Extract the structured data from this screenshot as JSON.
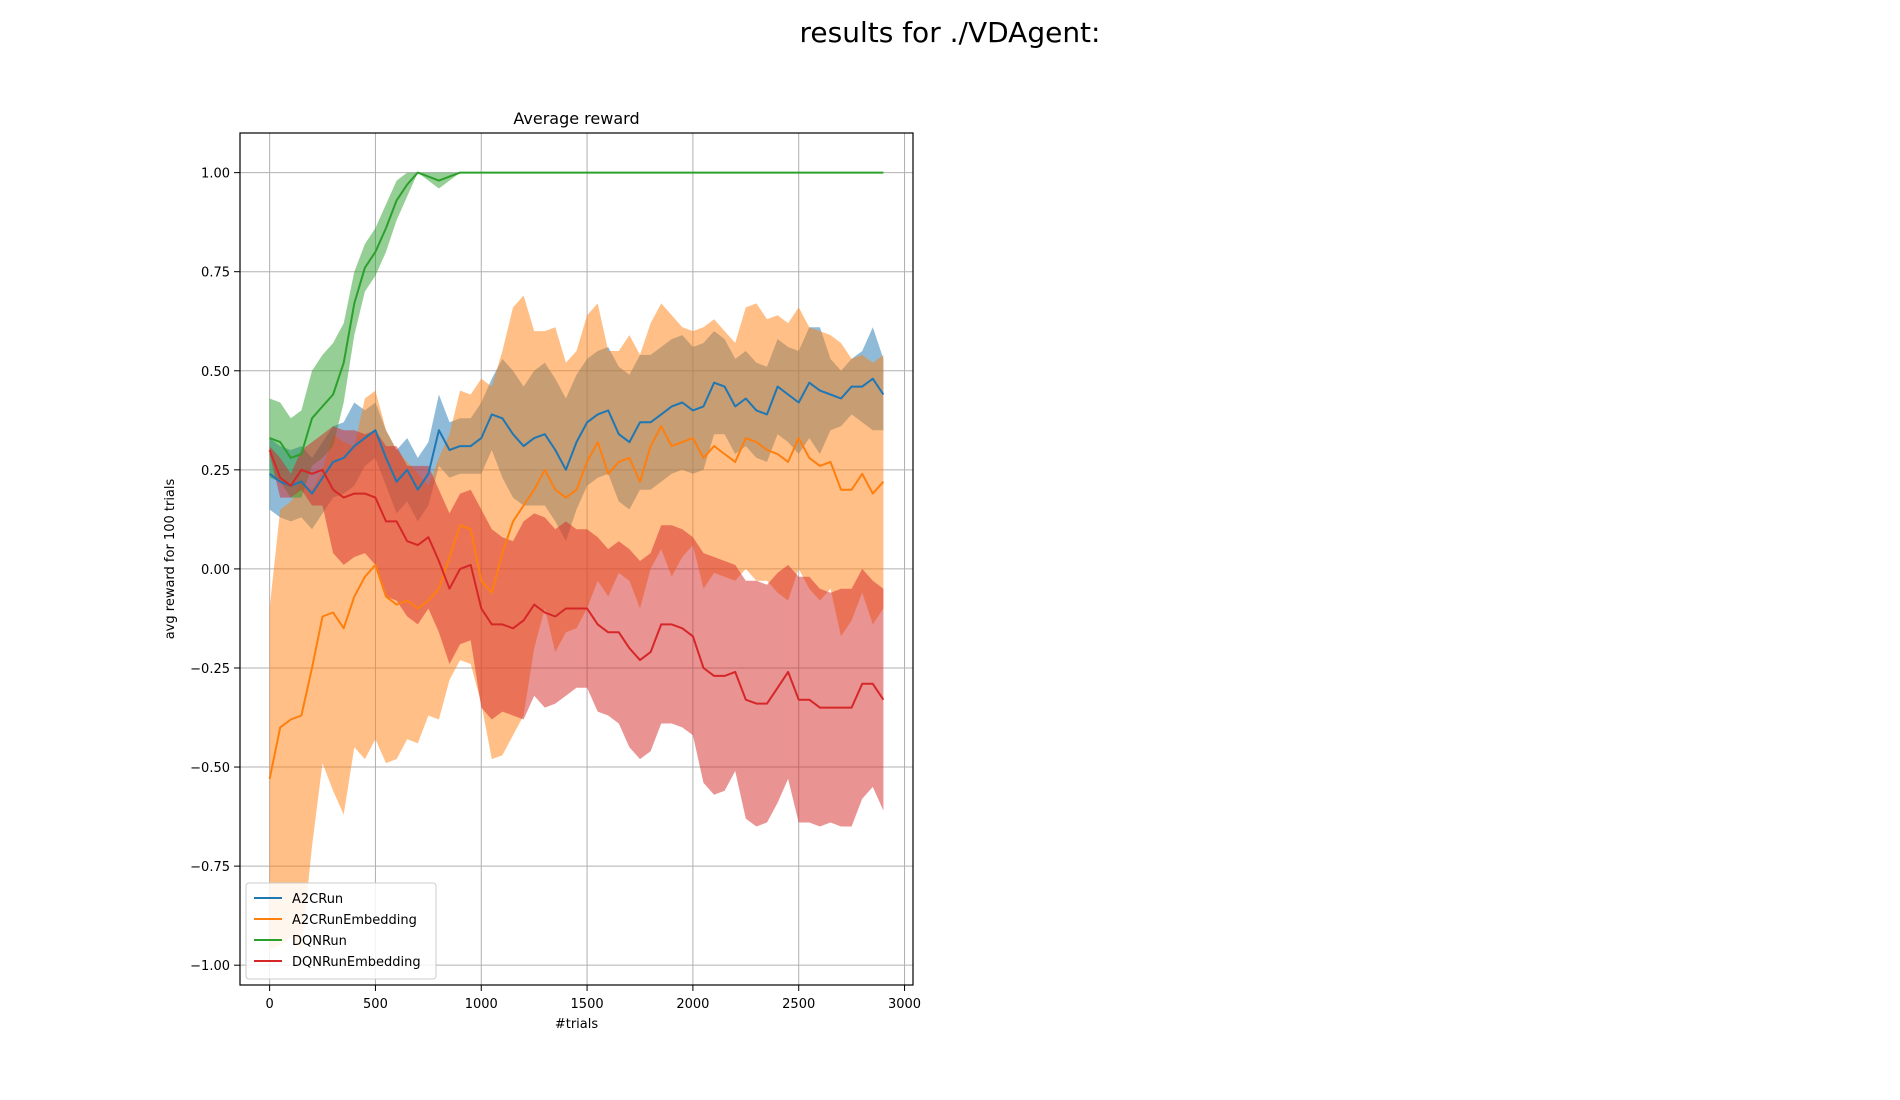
{
  "figure_title": "results for ./VDAgent:",
  "chart_data": {
    "type": "line",
    "title": "Average reward",
    "xlabel": "#trials",
    "ylabel": "avg reward for 100 trials",
    "xlim": [
      -140,
      3040
    ],
    "ylim": [
      -1.05,
      1.1
    ],
    "xticks": [
      0,
      500,
      1000,
      1500,
      2000,
      2500,
      3000
    ],
    "yticks": [
      -1.0,
      -0.75,
      -0.5,
      -0.25,
      0.0,
      0.25,
      0.5,
      0.75,
      1.0
    ],
    "ytick_labels": [
      "−1.00",
      "−0.75",
      "−0.50",
      "−0.25",
      "0.00",
      "0.25",
      "0.50",
      "0.75",
      "1.00"
    ],
    "grid": true,
    "legend_position": "lower-left",
    "x_start": 0,
    "x_step": 50,
    "series": [
      {
        "name": "A2CRun",
        "color": "#1f77b4",
        "band_opacity": 0.5,
        "mean": [
          0.24,
          0.22,
          0.21,
          0.22,
          0.19,
          0.23,
          0.27,
          0.28,
          0.31,
          0.33,
          0.35,
          0.28,
          0.22,
          0.25,
          0.2,
          0.24,
          0.35,
          0.3,
          0.31,
          0.31,
          0.33,
          0.39,
          0.38,
          0.34,
          0.31,
          0.33,
          0.34,
          0.3,
          0.25,
          0.32,
          0.37,
          0.39,
          0.4,
          0.34,
          0.32,
          0.37,
          0.37,
          0.39,
          0.41,
          0.42,
          0.4,
          0.41,
          0.47,
          0.46,
          0.41,
          0.43,
          0.4,
          0.39,
          0.46,
          0.44,
          0.42,
          0.47,
          0.45,
          0.44,
          0.43,
          0.46,
          0.46,
          0.48,
          0.44
        ],
        "upper": [
          0.33,
          0.31,
          0.3,
          0.31,
          0.28,
          0.32,
          0.36,
          0.37,
          0.42,
          0.4,
          0.42,
          0.35,
          0.3,
          0.33,
          0.28,
          0.32,
          0.44,
          0.37,
          0.38,
          0.38,
          0.42,
          0.48,
          0.53,
          0.5,
          0.46,
          0.5,
          0.52,
          0.48,
          0.43,
          0.49,
          0.53,
          0.55,
          0.56,
          0.51,
          0.49,
          0.54,
          0.54,
          0.56,
          0.58,
          0.59,
          0.56,
          0.57,
          0.6,
          0.58,
          0.53,
          0.55,
          0.52,
          0.51,
          0.58,
          0.56,
          0.55,
          0.61,
          0.61,
          0.53,
          0.5,
          0.53,
          0.55,
          0.61,
          0.53
        ],
        "lower": [
          0.15,
          0.13,
          0.12,
          0.13,
          0.1,
          0.14,
          0.18,
          0.19,
          0.21,
          0.26,
          0.28,
          0.21,
          0.14,
          0.17,
          0.12,
          0.16,
          0.26,
          0.23,
          0.24,
          0.24,
          0.24,
          0.3,
          0.23,
          0.18,
          0.16,
          0.16,
          0.16,
          0.12,
          0.07,
          0.15,
          0.21,
          0.23,
          0.24,
          0.17,
          0.15,
          0.2,
          0.2,
          0.22,
          0.24,
          0.25,
          0.24,
          0.25,
          0.34,
          0.34,
          0.29,
          0.31,
          0.28,
          0.27,
          0.34,
          0.32,
          0.29,
          0.33,
          0.29,
          0.35,
          0.36,
          0.39,
          0.37,
          0.35,
          0.35
        ]
      },
      {
        "name": "A2CRunEmbedding",
        "color": "#ff7f0e",
        "band_opacity": 0.5,
        "mean": [
          -0.53,
          -0.4,
          -0.38,
          -0.37,
          -0.25,
          -0.12,
          -0.11,
          -0.15,
          -0.07,
          -0.02,
          0.01,
          -0.07,
          -0.09,
          -0.08,
          -0.1,
          -0.08,
          -0.05,
          0.03,
          0.11,
          0.1,
          -0.03,
          -0.06,
          0.04,
          0.12,
          0.16,
          0.2,
          0.25,
          0.2,
          0.18,
          0.2,
          0.27,
          0.32,
          0.24,
          0.27,
          0.28,
          0.22,
          0.31,
          0.36,
          0.31,
          0.32,
          0.33,
          0.28,
          0.31,
          0.29,
          0.27,
          0.33,
          0.32,
          0.3,
          0.29,
          0.27,
          0.33,
          0.28,
          0.26,
          0.27,
          0.2,
          0.2,
          0.24,
          0.19,
          0.22
        ],
        "upper": [
          -0.1,
          0.15,
          0.17,
          0.22,
          0.2,
          0.25,
          0.34,
          0.32,
          0.31,
          0.43,
          0.45,
          0.35,
          0.3,
          0.27,
          0.24,
          0.21,
          0.28,
          0.34,
          0.45,
          0.44,
          0.48,
          0.46,
          0.55,
          0.66,
          0.69,
          0.6,
          0.6,
          0.61,
          0.52,
          0.55,
          0.64,
          0.67,
          0.55,
          0.55,
          0.59,
          0.54,
          0.62,
          0.67,
          0.64,
          0.61,
          0.6,
          0.61,
          0.63,
          0.6,
          0.57,
          0.66,
          0.67,
          0.63,
          0.64,
          0.62,
          0.66,
          0.61,
          0.6,
          0.59,
          0.57,
          0.53,
          0.54,
          0.52,
          0.54
        ],
        "lower": [
          -0.96,
          -0.95,
          -0.93,
          -0.96,
          -0.7,
          -0.49,
          -0.56,
          -0.62,
          -0.45,
          -0.48,
          -0.43,
          -0.49,
          -0.48,
          -0.43,
          -0.44,
          -0.37,
          -0.38,
          -0.28,
          -0.23,
          -0.24,
          -0.34,
          -0.48,
          -0.47,
          -0.42,
          -0.37,
          -0.2,
          -0.1,
          -0.21,
          -0.16,
          -0.15,
          -0.1,
          -0.03,
          -0.07,
          -0.01,
          -0.03,
          -0.1,
          0.0,
          0.05,
          -0.02,
          0.03,
          0.06,
          -0.05,
          -0.01,
          -0.02,
          -0.03,
          0.0,
          -0.03,
          -0.03,
          -0.06,
          -0.08,
          0.0,
          -0.05,
          -0.08,
          -0.05,
          -0.17,
          -0.13,
          -0.06,
          -0.14,
          -0.1
        ]
      },
      {
        "name": "DQNRun",
        "color": "#2ca02c",
        "band_opacity": 0.5,
        "mean": [
          0.33,
          0.32,
          0.28,
          0.29,
          0.38,
          0.41,
          0.44,
          0.52,
          0.67,
          0.76,
          0.8,
          0.86,
          0.93,
          0.97,
          1.0,
          0.99,
          0.98,
          0.99,
          1.0,
          1.0,
          1.0,
          1.0,
          1.0,
          1.0,
          1.0,
          1.0,
          1.0,
          1.0,
          1.0,
          1.0,
          1.0,
          1.0,
          1.0,
          1.0,
          1.0,
          1.0,
          1.0,
          1.0,
          1.0,
          1.0,
          1.0,
          1.0,
          1.0,
          1.0,
          1.0,
          1.0,
          1.0,
          1.0,
          1.0,
          1.0,
          1.0,
          1.0,
          1.0,
          1.0,
          1.0,
          1.0,
          1.0,
          1.0,
          1.0
        ],
        "upper": [
          0.43,
          0.42,
          0.38,
          0.4,
          0.5,
          0.54,
          0.57,
          0.62,
          0.75,
          0.82,
          0.86,
          0.92,
          0.98,
          1.0,
          1.0,
          1.0,
          1.0,
          1.0,
          1.0,
          1.0,
          1.0,
          1.0,
          1.0,
          1.0,
          1.0,
          1.0,
          1.0,
          1.0,
          1.0,
          1.0,
          1.0,
          1.0,
          1.0,
          1.0,
          1.0,
          1.0,
          1.0,
          1.0,
          1.0,
          1.0,
          1.0,
          1.0,
          1.0,
          1.0,
          1.0,
          1.0,
          1.0,
          1.0,
          1.0,
          1.0,
          1.0,
          1.0,
          1.0,
          1.0,
          1.0,
          1.0,
          1.0,
          1.0,
          1.0
        ],
        "lower": [
          0.23,
          0.22,
          0.18,
          0.18,
          0.26,
          0.28,
          0.31,
          0.42,
          0.59,
          0.7,
          0.74,
          0.8,
          0.88,
          0.94,
          1.0,
          0.98,
          0.96,
          0.98,
          1.0,
          1.0,
          1.0,
          1.0,
          1.0,
          1.0,
          1.0,
          1.0,
          1.0,
          1.0,
          1.0,
          1.0,
          1.0,
          1.0,
          1.0,
          1.0,
          1.0,
          1.0,
          1.0,
          1.0,
          1.0,
          1.0,
          1.0,
          1.0,
          1.0,
          1.0,
          1.0,
          1.0,
          1.0,
          1.0,
          1.0,
          1.0,
          1.0,
          1.0,
          1.0,
          1.0,
          1.0,
          1.0,
          1.0,
          1.0,
          1.0
        ]
      },
      {
        "name": "DQNRunEmbedding",
        "color": "#d62728",
        "band_opacity": 0.5,
        "mean": [
          0.3,
          0.23,
          0.21,
          0.25,
          0.24,
          0.25,
          0.2,
          0.18,
          0.19,
          0.19,
          0.18,
          0.12,
          0.12,
          0.07,
          0.06,
          0.08,
          0.02,
          -0.05,
          0.0,
          0.01,
          -0.1,
          -0.14,
          -0.14,
          -0.15,
          -0.13,
          -0.09,
          -0.11,
          -0.12,
          -0.1,
          -0.1,
          -0.1,
          -0.14,
          -0.16,
          -0.16,
          -0.2,
          -0.23,
          -0.21,
          -0.14,
          -0.14,
          -0.15,
          -0.17,
          -0.25,
          -0.27,
          -0.27,
          -0.26,
          -0.33,
          -0.34,
          -0.34,
          -0.3,
          -0.26,
          -0.33,
          -0.33,
          -0.35,
          -0.35,
          -0.35,
          -0.35,
          -0.29,
          -0.29,
          -0.33
        ],
        "upper": [
          0.31,
          0.28,
          0.24,
          0.3,
          0.32,
          0.34,
          0.36,
          0.35,
          0.35,
          0.34,
          0.35,
          0.31,
          0.31,
          0.26,
          0.26,
          0.26,
          0.2,
          0.14,
          0.19,
          0.2,
          0.15,
          0.1,
          0.08,
          0.07,
          0.12,
          0.14,
          0.13,
          0.1,
          0.12,
          0.1,
          0.1,
          0.08,
          0.05,
          0.07,
          0.05,
          0.02,
          0.04,
          0.11,
          0.11,
          0.1,
          0.08,
          0.04,
          0.03,
          0.02,
          0.01,
          -0.03,
          -0.03,
          -0.04,
          -0.01,
          0.01,
          -0.02,
          -0.02,
          -0.05,
          -0.06,
          -0.05,
          -0.05,
          0.0,
          -0.03,
          -0.05
        ],
        "lower": [
          0.29,
          0.18,
          0.18,
          0.2,
          0.16,
          0.16,
          0.04,
          0.01,
          0.03,
          0.04,
          0.01,
          -0.07,
          -0.08,
          -0.12,
          -0.14,
          -0.1,
          -0.16,
          -0.24,
          -0.19,
          -0.18,
          -0.35,
          -0.38,
          -0.36,
          -0.37,
          -0.38,
          -0.32,
          -0.35,
          -0.34,
          -0.32,
          -0.3,
          -0.3,
          -0.36,
          -0.37,
          -0.39,
          -0.45,
          -0.48,
          -0.46,
          -0.39,
          -0.39,
          -0.4,
          -0.42,
          -0.54,
          -0.57,
          -0.56,
          -0.51,
          -0.63,
          -0.65,
          -0.64,
          -0.59,
          -0.53,
          -0.64,
          -0.64,
          -0.65,
          -0.64,
          -0.65,
          -0.65,
          -0.58,
          -0.55,
          -0.61
        ]
      }
    ]
  }
}
